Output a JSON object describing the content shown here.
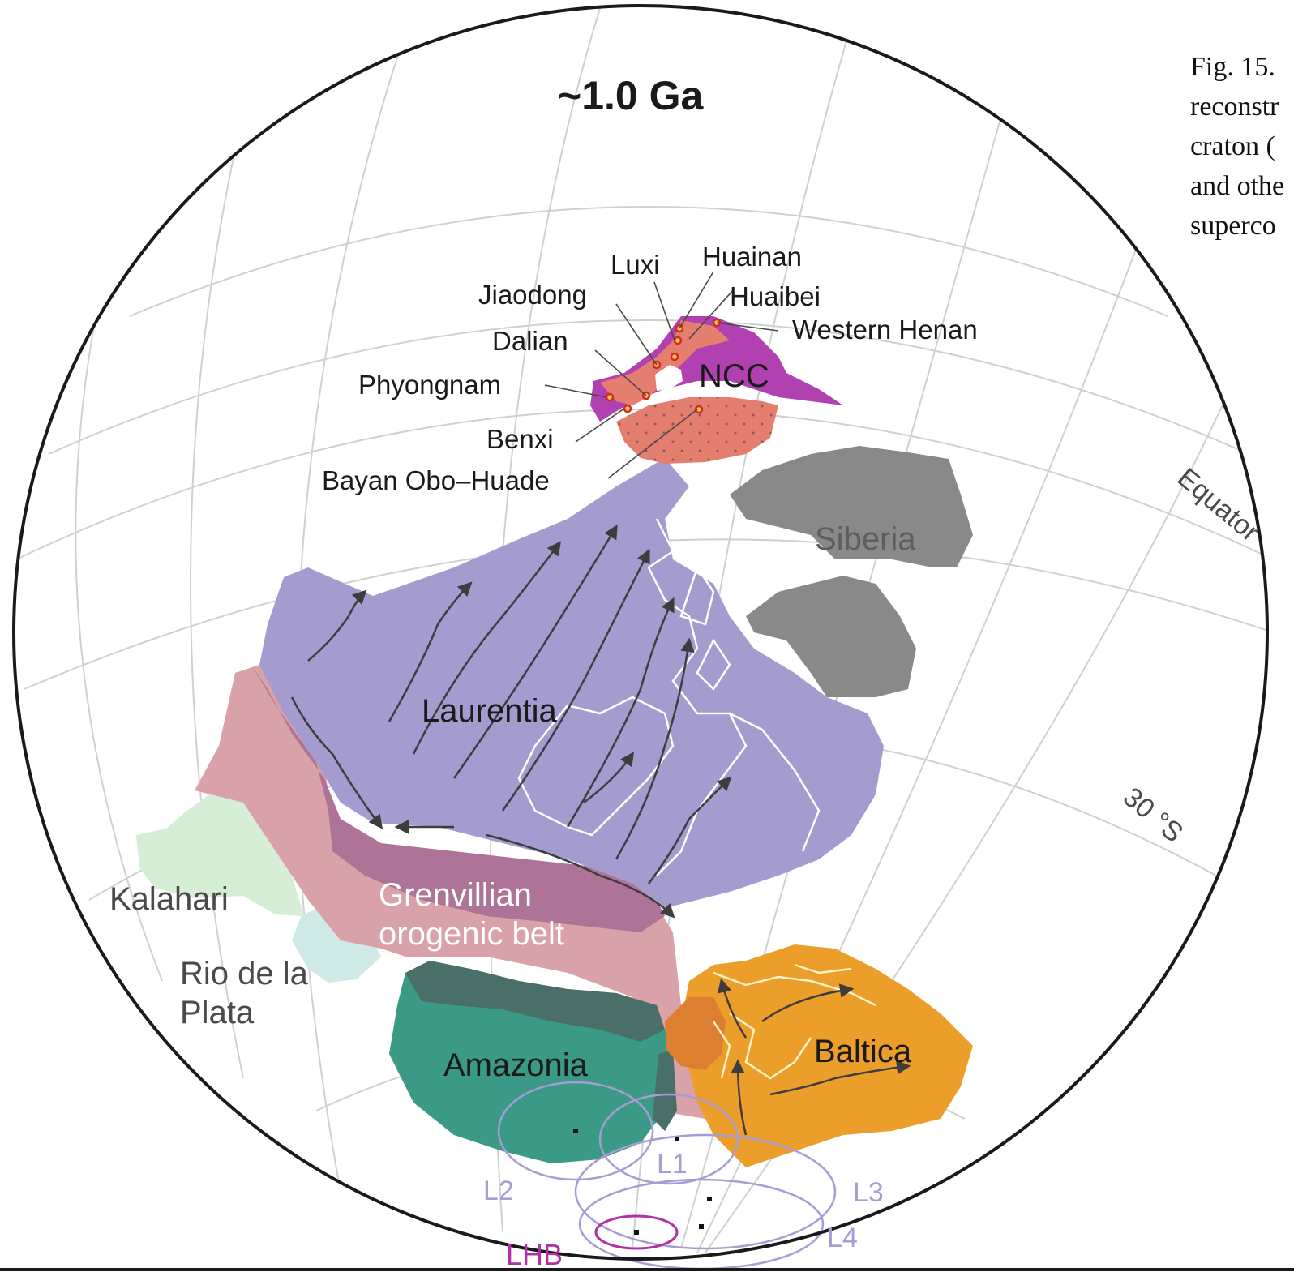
{
  "title": "~1.0 Ga",
  "caption_lines": [
    "Fig. 15.",
    "reconstr",
    "craton (",
    "and othe",
    "superco"
  ],
  "craton_labels": {
    "ncc": "NCC",
    "siberia": "Siberia",
    "laurentia": "Laurentia",
    "grenvillian_1": "Grenvillian",
    "grenvillian_2": "orogenic belt",
    "kalahari": "Kalahari",
    "rio_1": "Rio de la",
    "rio_2": "Plata",
    "amazonia": "Amazonia",
    "baltica": "Baltica"
  },
  "locality_labels": {
    "luxi": "Luxi",
    "huainan": "Huainan",
    "jiaodong": "Jiaodong",
    "huaibei": "Huaibei",
    "western_henan": "Western Henan",
    "dalian": "Dalian",
    "phyongnam": "Phyongnam",
    "benxi": "Benxi",
    "bayan_obo": "Bayan Obo–Huade"
  },
  "latitude_labels": {
    "equator": "Equator",
    "lat30s": "30 °S"
  },
  "pole_labels": {
    "l1": "L1",
    "l2": "L2",
    "l3": "L3",
    "l4": "L4",
    "lhb": "LHB"
  },
  "colors": {
    "laurentia": "#a49ccf",
    "grenvillian": "#d9a2a9",
    "grenvillian_dark": "#ad7497",
    "ncc": "#b140b0",
    "ncc_overlay": "#e47e6f",
    "siberia": "#898989",
    "kalahari": "#d6eed5",
    "rio_de_la_plata": "#cfeae6",
    "amazonia": "#3a9a86",
    "amazonia_dark": "#4a6e68",
    "baltica": "#ec9e2b",
    "baltica_dark": "#dd7f30",
    "pole_ellipse": "#a99bd4",
    "lhb_ellipse": "#b130a8",
    "grid": "#d0d0d0"
  }
}
